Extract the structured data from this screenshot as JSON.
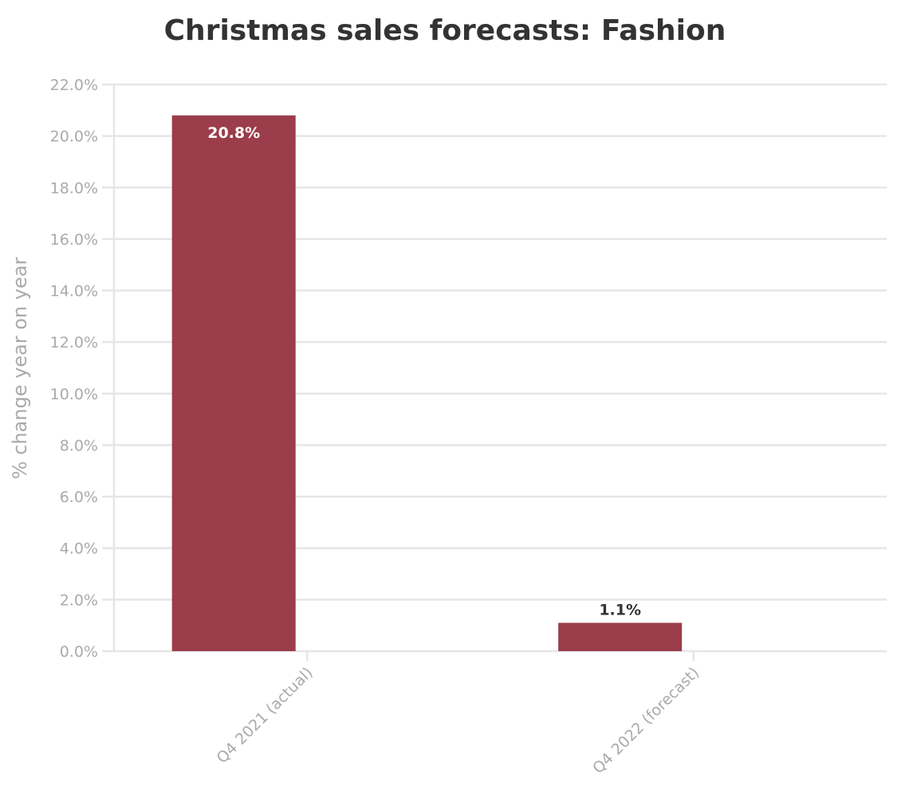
{
  "chart_data": {
    "type": "bar",
    "title": "Christmas sales forecasts: Fashion",
    "xlabel": "",
    "ylabel": "% change year on year",
    "categories": [
      "Q4 2021 (actual)",
      "Q4 2022 (forecast)"
    ],
    "values": [
      20.8,
      1.1
    ],
    "data_labels": [
      "20.8%",
      "1.1%"
    ],
    "ylim": [
      0,
      22
    ],
    "yticks": [
      "0.0%",
      "2.0%",
      "4.0%",
      "6.0%",
      "8.0%",
      "10.0%",
      "12.0%",
      "14.0%",
      "16.0%",
      "18.0%",
      "20.0%",
      "22.0%"
    ],
    "grid": true,
    "legend": "none",
    "colors": {
      "bar": "#9b3d4a",
      "grid": "#e6e6e6",
      "axis_text": "#aaaaaa",
      "title": "#333333"
    }
  }
}
